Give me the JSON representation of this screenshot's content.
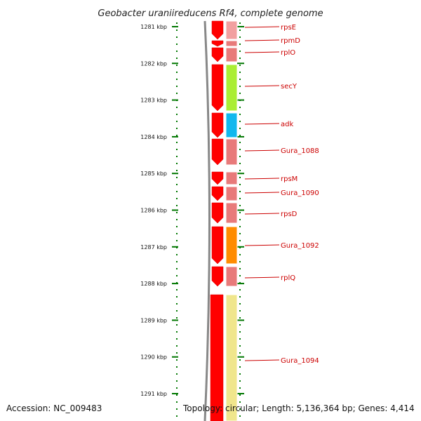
{
  "title": "Geobacter uraniireducens Rf4, complete genome",
  "accession": "Accession: NC_009483",
  "topology": "Topology: circular; Length: 5,136,364 bp; Genes: 4,414",
  "colors": {
    "strand": "#ff0000",
    "gene_pink": "#e87a7a",
    "gene_light_pink": "#f2a0a0",
    "secY": "#aaee33",
    "adk": "#11b8ee",
    "orange": "#ff8c00",
    "yellow": "#f0e68c",
    "tick": "#007700",
    "label": "#cc0000"
  },
  "ruler": {
    "labels": [
      "1281 kbp",
      "1282 kbp",
      "1283 kbp",
      "1284 kbp",
      "1285 kbp",
      "1286 kbp",
      "1287 kbp",
      "1288 kbp",
      "1289 kbp",
      "1290 kbp",
      "1291 kbp"
    ]
  },
  "genes": [
    "rpsE",
    "rpmD",
    "rplO",
    "secY",
    "adk",
    "Gura_1088",
    "rpsM",
    "Gura_1090",
    "rpsD",
    "Gura_1092",
    "rplQ",
    "Gura_1094"
  ]
}
